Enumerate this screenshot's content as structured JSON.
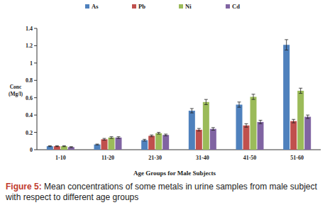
{
  "chart_data": {
    "type": "bar",
    "caption": {
      "label": "Figure 5:",
      "text": "Mean concentrations of some metals in urine samples from male subject with respect  to different age groups"
    },
    "x_label": "Age Groups for Male Subjects",
    "y_label": "Conc (Mg/l)",
    "categories": [
      "1-10",
      "11-20",
      "21-30",
      "31-40",
      "41-50",
      "51-60"
    ],
    "series": [
      {
        "name": "As",
        "color": "#4f81bd",
        "values": [
          0.04,
          0.06,
          0.11,
          0.45,
          0.52,
          1.21
        ],
        "errors": [
          0.005,
          0.005,
          0.01,
          0.025,
          0.03,
          0.06
        ]
      },
      {
        "name": "Pb",
        "color": "#c0504d",
        "values": [
          0.04,
          0.12,
          0.16,
          0.23,
          0.28,
          0.33
        ],
        "errors": [
          0.005,
          0.01,
          0.01,
          0.015,
          0.02,
          0.02
        ]
      },
      {
        "name": "Ni",
        "color": "#9bbb59",
        "values": [
          0.04,
          0.14,
          0.19,
          0.55,
          0.61,
          0.68
        ],
        "errors": [
          0.005,
          0.01,
          0.01,
          0.03,
          0.03,
          0.03
        ]
      },
      {
        "name": "Cd",
        "color": "#8064a2",
        "values": [
          0.03,
          0.14,
          0.17,
          0.24,
          0.32,
          0.38
        ],
        "errors": [
          0.005,
          0.01,
          0.01,
          0.015,
          0.02,
          0.02
        ]
      }
    ],
    "ylim": [
      0,
      1.4
    ],
    "yticks": [
      0,
      0.2,
      0.4,
      0.6,
      0.8,
      1,
      1.2,
      1.4
    ],
    "grid": false,
    "legend": "top"
  }
}
